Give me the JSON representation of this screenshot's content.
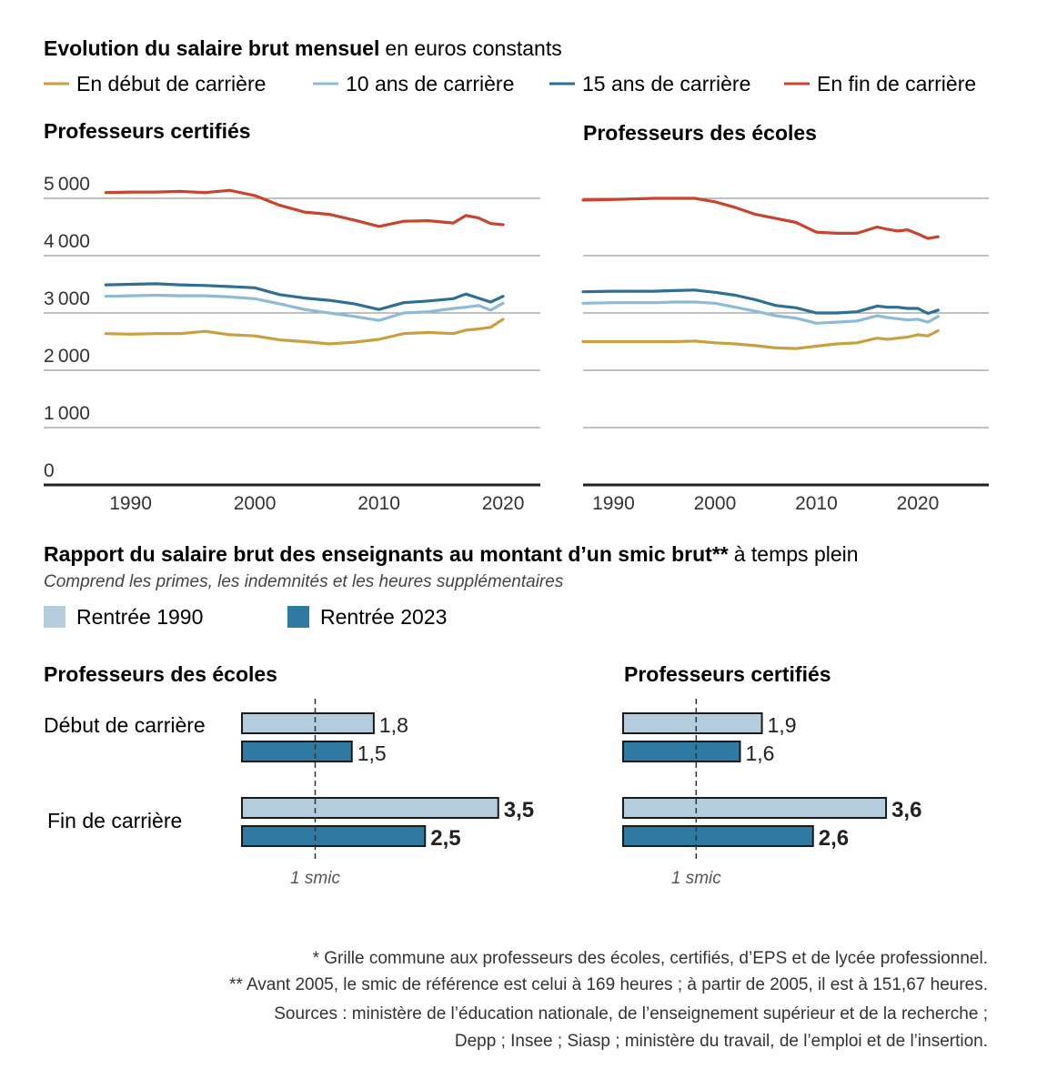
{
  "header": {
    "title_bold": "Evolution du salaire brut mensuel",
    "title_rest": "en euros constants"
  },
  "colors": {
    "debut": "#c9a03f",
    "ans10": "#8fbad6",
    "ans15": "#2f6f95",
    "fin": "#c8442e",
    "bar1990": "#b3cddf",
    "bar2023": "#2f7aa3",
    "grid": "#9a9a9a",
    "axis": "#222222"
  },
  "chart_data": [
    {
      "type": "line",
      "title": "Professeurs certifiés",
      "x_ticks": [
        "1990",
        "2000",
        "2010",
        "2020"
      ],
      "y_ticks": [
        "0",
        "1000",
        "2000",
        "3000",
        "4000",
        "5000"
      ],
      "xlim": [
        1983,
        2023
      ],
      "ylim": [
        0,
        5000
      ],
      "x": [
        1988,
        1990,
        1992,
        1994,
        1996,
        1998,
        2000,
        2002,
        2004,
        2006,
        2008,
        2010,
        2012,
        2014,
        2016,
        2017,
        2018,
        2019,
        2020
      ],
      "series": [
        {
          "name": "En début de carrière",
          "values": [
            2640,
            2630,
            2640,
            2640,
            2680,
            2620,
            2600,
            2530,
            2500,
            2460,
            2490,
            2540,
            2640,
            2660,
            2640,
            2700,
            2720,
            2750,
            2890
          ]
        },
        {
          "name": "10 ans de carrière",
          "values": [
            3290,
            3300,
            3310,
            3300,
            3300,
            3280,
            3250,
            3160,
            3060,
            3000,
            2940,
            2870,
            3000,
            3020,
            3080,
            3100,
            3130,
            3050,
            3170
          ]
        },
        {
          "name": "15 ans de carrière",
          "values": [
            3490,
            3500,
            3510,
            3490,
            3480,
            3460,
            3440,
            3320,
            3260,
            3220,
            3160,
            3060,
            3180,
            3210,
            3250,
            3330,
            3260,
            3190,
            3290
          ]
        },
        {
          "name": "En fin de carrière",
          "values": [
            5100,
            5110,
            5110,
            5120,
            5100,
            5140,
            5050,
            4880,
            4760,
            4720,
            4620,
            4510,
            4600,
            4610,
            4570,
            4700,
            4660,
            4560,
            4540
          ]
        }
      ]
    },
    {
      "type": "line",
      "title": "Professeurs des écoles",
      "x_ticks": [
        "1990",
        "2000",
        "2010",
        "2020"
      ],
      "y_ticks": [
        "0",
        "1000",
        "2000",
        "3000",
        "4000",
        "5000"
      ],
      "xlim": [
        1987,
        2027
      ],
      "ylim": [
        0,
        5000
      ],
      "x": [
        1987,
        1990,
        1992,
        1994,
        1996,
        1998,
        2000,
        2002,
        2004,
        2006,
        2008,
        2010,
        2012,
        2014,
        2016,
        2017,
        2018,
        2019,
        2020,
        2021,
        2022
      ],
      "series": [
        {
          "name": "En début de carrière",
          "values": [
            2500,
            2500,
            2500,
            2500,
            2500,
            2510,
            2480,
            2460,
            2430,
            2390,
            2380,
            2420,
            2460,
            2480,
            2560,
            2540,
            2560,
            2580,
            2620,
            2600,
            2690
          ]
        },
        {
          "name": "10 ans de carrière",
          "values": [
            3170,
            3180,
            3180,
            3180,
            3190,
            3190,
            3170,
            3100,
            3030,
            2950,
            2910,
            2820,
            2840,
            2860,
            2950,
            2920,
            2900,
            2880,
            2890,
            2840,
            2940
          ]
        },
        {
          "name": "15 ans de carrière",
          "values": [
            3370,
            3380,
            3380,
            3380,
            3390,
            3400,
            3360,
            3310,
            3230,
            3130,
            3090,
            3000,
            3000,
            3020,
            3120,
            3100,
            3100,
            3080,
            3080,
            2990,
            3050
          ]
        },
        {
          "name": "En fin de carrière",
          "values": [
            4970,
            4980,
            4990,
            5000,
            5000,
            5000,
            4940,
            4840,
            4720,
            4650,
            4580,
            4410,
            4390,
            4390,
            4500,
            4460,
            4430,
            4450,
            4380,
            4300,
            4330
          ]
        }
      ]
    },
    {
      "type": "bar",
      "orientation": "horizontal",
      "title": "Professeurs des écoles",
      "categories": [
        "Début de carrière",
        "Fin de carrière"
      ],
      "reference": {
        "value": 1,
        "label": "1 smic"
      },
      "series": [
        {
          "name": "Rentrée 1990",
          "values": [
            1.8,
            3.5
          ],
          "labels": [
            "1,8",
            "3,5"
          ]
        },
        {
          "name": "Rentrée 2023",
          "values": [
            1.5,
            2.5
          ],
          "labels": [
            "1,5",
            "2,5"
          ]
        }
      ]
    },
    {
      "type": "bar",
      "orientation": "horizontal",
      "title": "Professeurs certifiés",
      "categories": [
        "Début de carrière",
        "Fin de carrière"
      ],
      "reference": {
        "value": 1,
        "label": "1 smic"
      },
      "series": [
        {
          "name": "Rentrée 1990",
          "values": [
            1.9,
            3.6
          ],
          "labels": [
            "1,9",
            "3,6"
          ]
        },
        {
          "name": "Rentrée 2023",
          "values": [
            1.6,
            2.6
          ],
          "labels": [
            "1,6",
            "2,6"
          ]
        }
      ]
    }
  ],
  "line_legend": [
    "En début de carrière",
    "10 ans de carrière",
    "15 ans de carrière",
    "En fin de carrière"
  ],
  "ratio_section": {
    "title_bold": "Rapport du salaire brut des enseignants au montant d’un smic brut**",
    "title_rest": "à temps plein",
    "subtitle": "Comprend les primes, les indemnités et les heures supplémentaires",
    "legend": [
      "Rentrée 1990",
      "Rentrée 2023"
    ]
  },
  "footnotes": [
    "* Grille commune aux professeurs des écoles, certifiés, d’EPS et de lycée professionnel.",
    "** Avant 2005, le smic de référence est celui à 169 heures ; à partir de 2005, il est à 151,67 heures.",
    "Sources : ministère de l’éducation nationale, de l’enseignement supérieur et de la recherche ;",
    "Depp ; Insee ; Siasp ; ministère du travail, de l’emploi et de l’insertion."
  ]
}
